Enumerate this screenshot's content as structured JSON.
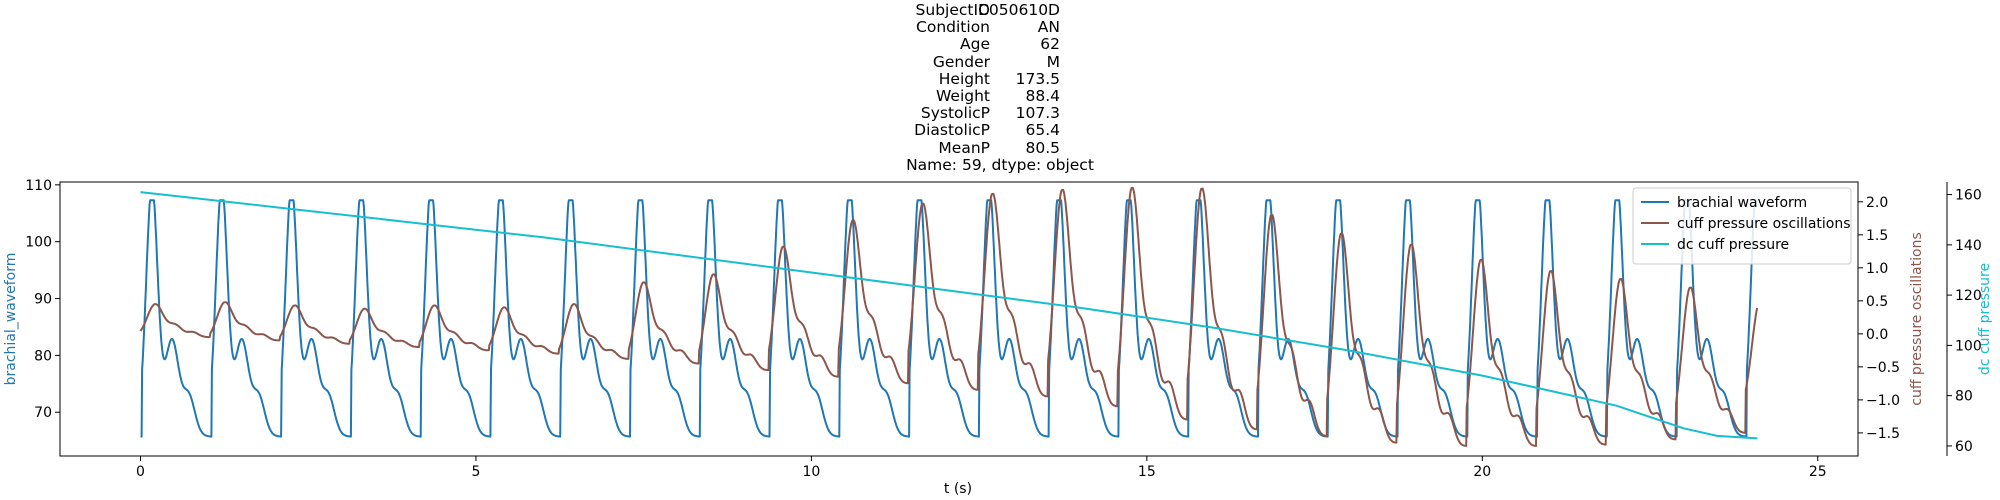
{
  "title": {
    "rows": [
      {
        "key": "SubjectID",
        "value": "C050610D"
      },
      {
        "key": "Condition",
        "value": "AN"
      },
      {
        "key": "Age",
        "value": "62"
      },
      {
        "key": "Gender",
        "value": "M"
      },
      {
        "key": "Height",
        "value": "173.5"
      },
      {
        "key": "Weight",
        "value": "88.4"
      },
      {
        "key": "SystolicP",
        "value": "107.3"
      },
      {
        "key": "DiastolicP",
        "value": "65.4"
      },
      {
        "key": "MeanP",
        "value": "80.5"
      }
    ],
    "footer": "Name: 59, dtype: object"
  },
  "chart_data": {
    "type": "line",
    "xlabel": "t (s)",
    "xlim": [
      -1.2,
      25.6
    ],
    "xticks": [
      0,
      5,
      10,
      15,
      20,
      25
    ],
    "grid": false,
    "legend_placement": "top-right",
    "axes": {
      "left": {
        "label": "brachial_waveform",
        "color": "#1f77b4",
        "ylim": [
          62.3,
          110.5
        ],
        "ticks": [
          70,
          80,
          90,
          100,
          110
        ]
      },
      "right": {
        "label": "cuff pressure oscillations",
        "color": "#8c564b",
        "ylim": [
          -1.85,
          2.3
        ],
        "ticks": [
          -1.5,
          -1.0,
          -0.5,
          0.0,
          0.5,
          1.0,
          1.5,
          2.0
        ],
        "tick_labels": [
          "−1.5",
          "−1.0",
          "−0.5",
          "0.0",
          "0.5",
          "1.0",
          "1.5",
          "2.0"
        ]
      },
      "far_right": {
        "label": "dc cuff pressure",
        "color": "#17becf",
        "ylim": [
          56,
          165
        ],
        "ticks": [
          60,
          80,
          100,
          120,
          140,
          160
        ]
      }
    },
    "series": [
      {
        "name": "brachial waveform",
        "axis": "left",
        "color": "#1f77b4",
        "shape": "pulse",
        "t_start": 0.0,
        "t_end": 24.1,
        "beat_period_s": 1.04,
        "first_peak_s": 0.17,
        "values": {
          "systolic": 107.3,
          "diastolic": 65.4,
          "mean": 80.5
        }
      },
      {
        "name": "cuff pressure oscillations",
        "axis": "right",
        "color": "#8c564b",
        "shape": "oscillation",
        "t_start": 0.0,
        "t_end": 24.1,
        "beat_period_s": 1.04,
        "first_peak_s": 0.2,
        "beat_peaks_approx": [
          0.45,
          0.48,
          0.43,
          0.38,
          0.43,
          0.4,
          0.45,
          0.78,
          0.9,
          1.32,
          1.72,
          1.97,
          2.12,
          2.18,
          2.21,
          2.2,
          1.8,
          1.52,
          1.35,
          1.12,
          0.95,
          0.83,
          0.7,
          0.5
        ],
        "beat_troughs_approx": [
          -0.05,
          -0.1,
          -0.15,
          -0.2,
          -0.25,
          -0.3,
          -0.38,
          -0.45,
          -0.55,
          -0.65,
          -0.75,
          -0.85,
          -0.95,
          -1.1,
          -1.3,
          -1.45,
          -1.55,
          -1.65,
          -1.7,
          -1.7,
          -1.68,
          -1.6,
          -1.5,
          -1.2
        ]
      },
      {
        "name": "dc cuff pressure",
        "axis": "far_right",
        "color": "#17becf",
        "shape": "smooth",
        "x": [
          0.0,
          2.0,
          4.0,
          6.0,
          8.0,
          10.0,
          12.0,
          14.0,
          16.0,
          18.0,
          20.0,
          22.0,
          23.0,
          23.5,
          24.1
        ],
        "y": [
          161,
          155,
          149,
          143,
          136,
          129,
          122,
          115,
          107,
          98,
          88,
          76,
          67,
          64,
          63
        ]
      }
    ]
  }
}
